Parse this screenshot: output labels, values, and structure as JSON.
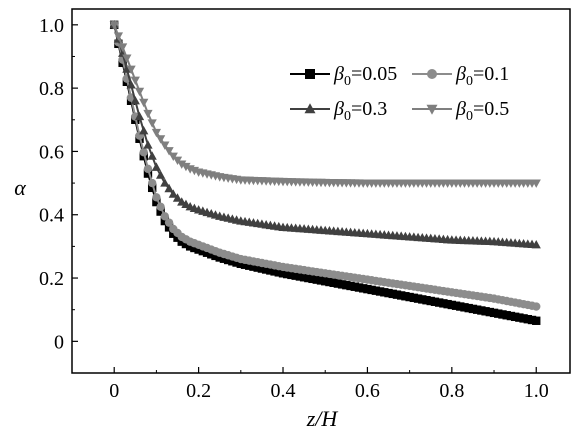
{
  "chart_data": {
    "type": "line",
    "xlabel": "z/H",
    "ylabel": "α",
    "xlim": [
      -0.1,
      1.08
    ],
    "ylim": [
      -0.1,
      1.05
    ],
    "x_ticks": [
      "0",
      "0.2",
      "0.4",
      "0.6",
      "0.8",
      "1.0"
    ],
    "y_ticks": [
      "0",
      "0.2",
      "0.4",
      "0.6",
      "0.8",
      "1.0"
    ],
    "grid": false,
    "legend_position": "top-right",
    "series": [
      {
        "name": "β0=0.05",
        "legend_main": "β",
        "legend_sub": "0",
        "legend_value": "=0.05",
        "marker": "square",
        "color": "#000000",
        "x": [
          0,
          0.02,
          0.04,
          0.06,
          0.08,
          0.1,
          0.12,
          0.14,
          0.16,
          0.18,
          0.2,
          0.25,
          0.3,
          0.4,
          0.5,
          0.6,
          0.7,
          0.8,
          0.9,
          1.0
        ],
        "y": [
          1.0,
          0.88,
          0.76,
          0.64,
          0.53,
          0.44,
          0.38,
          0.34,
          0.315,
          0.3,
          0.29,
          0.265,
          0.245,
          0.215,
          0.19,
          0.165,
          0.14,
          0.115,
          0.09,
          0.065
        ]
      },
      {
        "name": "β0=0.1",
        "legend_main": "β",
        "legend_sub": "0",
        "legend_value": "=0.1",
        "marker": "circle",
        "color": "#8c8c8c",
        "x": [
          0,
          0.02,
          0.04,
          0.06,
          0.08,
          0.1,
          0.12,
          0.14,
          0.16,
          0.18,
          0.2,
          0.25,
          0.3,
          0.4,
          0.5,
          0.6,
          0.7,
          0.8,
          0.9,
          1.0
        ],
        "y": [
          1.0,
          0.89,
          0.77,
          0.65,
          0.545,
          0.455,
          0.395,
          0.355,
          0.33,
          0.315,
          0.305,
          0.28,
          0.26,
          0.235,
          0.215,
          0.195,
          0.175,
          0.155,
          0.135,
          0.11
        ]
      },
      {
        "name": "β0=0.3",
        "legend_main": "β",
        "legend_sub": "0",
        "legend_value": "=0.3",
        "marker": "triangle-up",
        "color": "#404040",
        "x": [
          0,
          0.02,
          0.04,
          0.06,
          0.08,
          0.1,
          0.12,
          0.14,
          0.16,
          0.18,
          0.2,
          0.25,
          0.3,
          0.4,
          0.5,
          0.6,
          0.7,
          0.8,
          0.9,
          1.0
        ],
        "y": [
          1.0,
          0.91,
          0.81,
          0.71,
          0.62,
          0.55,
          0.5,
          0.465,
          0.44,
          0.425,
          0.415,
          0.395,
          0.38,
          0.36,
          0.35,
          0.34,
          0.33,
          0.32,
          0.315,
          0.305
        ]
      },
      {
        "name": "β0=0.5",
        "legend_main": "β",
        "legend_sub": "0",
        "legend_value": "=0.5",
        "marker": "triangle-down",
        "color": "#7f7f7f",
        "x": [
          0,
          0.02,
          0.04,
          0.06,
          0.08,
          0.1,
          0.12,
          0.14,
          0.16,
          0.18,
          0.2,
          0.25,
          0.3,
          0.4,
          0.5,
          0.6,
          0.7,
          0.8,
          0.9,
          1.0
        ],
        "y": [
          1.0,
          0.93,
          0.86,
          0.79,
          0.72,
          0.66,
          0.62,
          0.585,
          0.56,
          0.545,
          0.535,
          0.52,
          0.51,
          0.505,
          0.502,
          0.5,
          0.5,
          0.5,
          0.5,
          0.5
        ]
      }
    ]
  }
}
